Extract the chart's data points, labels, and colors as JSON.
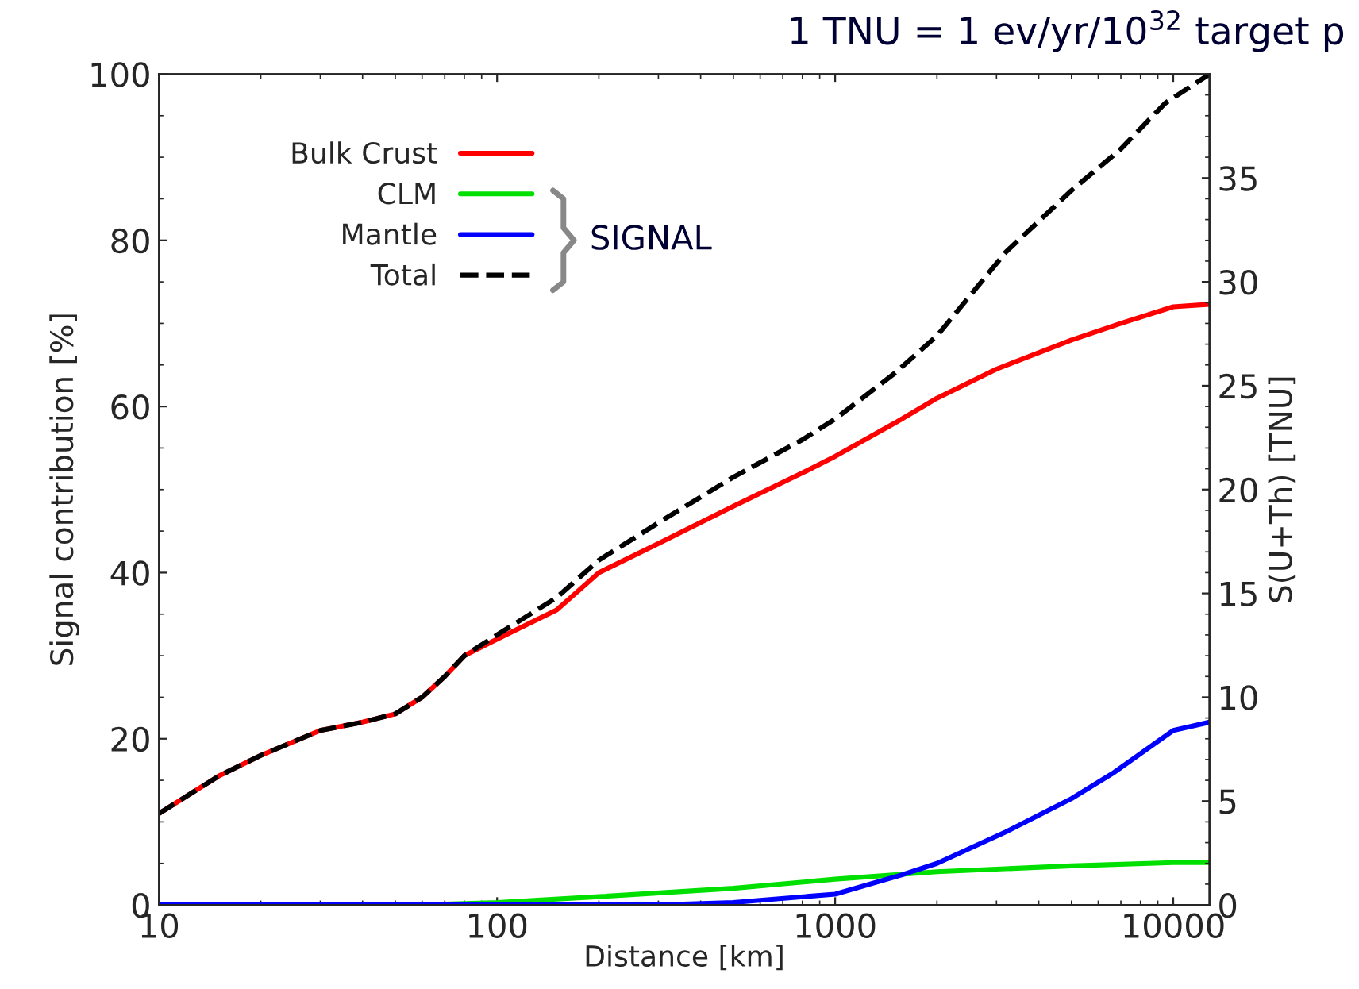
{
  "chart_data": {
    "type": "line",
    "title": "1 TNU = 1 ev/yr/10$^{32}$ target p",
    "xlabel": "Distance [km]",
    "ylabel": "Signal contribution [%]",
    "y2label": "S(U+Th) [TNU]",
    "annotations": [
      "SIGNAL"
    ],
    "log": "x",
    "xlim": [
      10,
      12800
    ],
    "xticks": [
      10,
      100,
      1000,
      10000
    ],
    "ylim": [
      0,
      100
    ],
    "yticks": [
      0,
      20,
      40,
      60,
      80,
      100
    ],
    "y2lim": [
      0,
      40
    ],
    "y2ticks": [
      0,
      5,
      10,
      15,
      20,
      25,
      30,
      35
    ],
    "legend": "top left",
    "grid": false,
    "series": [
      {
        "name": "Bulk Crust",
        "color": "#ff0000",
        "x": [
          10,
          15,
          20,
          30,
          40,
          50,
          60,
          70,
          80,
          100,
          150,
          200,
          300,
          500,
          800,
          1000,
          1500,
          2000,
          3000,
          5000,
          7000,
          10000,
          12800
        ],
        "values": [
          11,
          15.5,
          18,
          21,
          22,
          23,
          25,
          27.5,
          30,
          32,
          35.5,
          40,
          43.5,
          48,
          52,
          54,
          58,
          61,
          64.5,
          68,
          70,
          72,
          72.3
        ]
      },
      {
        "name": "CLM",
        "color": "#00e000",
        "x": [
          10,
          50,
          70,
          100,
          200,
          500,
          1000,
          2000,
          5000,
          10000,
          12800
        ],
        "values": [
          0,
          0,
          0.1,
          0.3,
          1,
          2,
          3.1,
          4,
          4.7,
          5.1,
          5.1
        ]
      },
      {
        "name": "Mantle",
        "color": "#0000ff",
        "x": [
          10,
          100,
          300,
          500,
          1000,
          1570,
          2000,
          3200,
          5000,
          6600,
          10000,
          12800
        ],
        "values": [
          0,
          0,
          0,
          0.3,
          1.3,
          3.6,
          5,
          8.8,
          12.8,
          15.8,
          21,
          22
        ]
      },
      {
        "name": "Total",
        "color": "#000000",
        "line_style": "dashed",
        "x": [
          10,
          15,
          20,
          30,
          40,
          50,
          60,
          70,
          80,
          100,
          150,
          200,
          300,
          500,
          800,
          1000,
          1500,
          2000,
          3200,
          5000,
          7000,
          9460,
          12800
        ],
        "values": [
          11,
          15.5,
          18,
          21,
          22,
          23,
          25,
          27.5,
          30,
          32.5,
          37,
          41.5,
          46,
          51.5,
          56,
          58.5,
          64,
          68.5,
          78.6,
          86,
          91,
          96.5,
          100
        ]
      }
    ]
  }
}
